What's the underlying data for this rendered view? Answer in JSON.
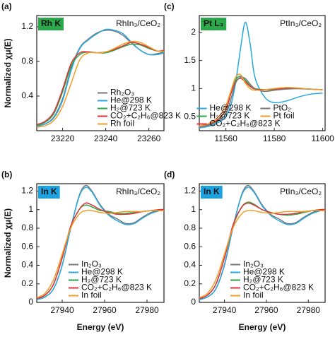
{
  "chart_data": [
    {
      "type": "line",
      "label": "(a)",
      "edge": "Rh K",
      "edge_color": "#2aa84a",
      "sample": "RhIn₃/CeO₂",
      "ylabel": "Normalized χμ(E)",
      "x": [
        23208,
        23212,
        23216,
        23220,
        23224,
        23228,
        23232,
        23236,
        23240,
        23244,
        23248,
        23252,
        23256,
        23260,
        23264,
        23267
      ],
      "xlim": [
        23208,
        23267
      ],
      "xticks": [
        23220,
        23240,
        23260
      ],
      "ylim": [
        0,
        1.33
      ],
      "yticks": [
        0.4,
        0.8,
        1.2
      ],
      "legend": "lower right",
      "legend_columns": 1,
      "series": [
        {
          "name": "Rh₂O₃",
          "color": "#777777",
          "values": [
            0.05,
            0.08,
            0.16,
            0.37,
            0.72,
            0.96,
            1.06,
            1.13,
            1.16,
            1.15,
            1.1,
            1.01,
            0.93,
            0.88,
            0.89,
            0.91
          ]
        },
        {
          "name": "He@298 K",
          "color": "#29a8e0",
          "values": [
            0.05,
            0.08,
            0.15,
            0.35,
            0.7,
            0.95,
            1.05,
            1.12,
            1.17,
            1.16,
            1.12,
            1.02,
            0.93,
            0.88,
            0.88,
            0.9
          ]
        },
        {
          "name": "H₂@723 K",
          "color": "#2aa84a",
          "values": [
            0.06,
            0.1,
            0.2,
            0.45,
            0.75,
            0.88,
            0.91,
            0.9,
            0.9,
            0.93,
            0.97,
            1.0,
            0.99,
            0.95,
            0.92,
            0.92
          ]
        },
        {
          "name": "CO₂+C₂H₆@823 K",
          "color": "#e0303a",
          "values": [
            0.07,
            0.11,
            0.22,
            0.48,
            0.78,
            0.9,
            0.91,
            0.9,
            0.91,
            0.94,
            0.98,
            1.02,
            1.0,
            0.96,
            0.92,
            0.93
          ]
        },
        {
          "name": "Rh foil",
          "color": "#f39c26",
          "values": [
            0.04,
            0.06,
            0.12,
            0.28,
            0.55,
            0.82,
            0.9,
            0.9,
            0.91,
            0.95,
            1.0,
            1.03,
            1.02,
            0.97,
            0.92,
            0.92
          ]
        }
      ]
    },
    {
      "type": "line",
      "label": "(b)",
      "edge": "In K",
      "edge_color": "#1aa3e0",
      "sample": "RhIn₃/CeO₂",
      "ylabel": "Normalized χμ(E)",
      "xlabel": "Energy (eV)",
      "x": [
        27928,
        27932,
        27936,
        27940,
        27944,
        27948,
        27951,
        27954,
        27958,
        27962,
        27966,
        27970,
        27974,
        27978,
        27982,
        27986,
        27988
      ],
      "xlim": [
        27928,
        27988
      ],
      "xticks": [
        27940,
        27960,
        27980
      ],
      "ylim": [
        0,
        1.28
      ],
      "yticks": [
        0.0,
        0.2,
        0.4,
        0.6,
        0.8,
        1.0,
        1.2
      ],
      "legend": "lower center",
      "legend_columns": 1,
      "series": [
        {
          "name": "In₂O₃",
          "color": "#777777",
          "values": [
            0.03,
            0.06,
            0.15,
            0.4,
            0.8,
            1.15,
            1.26,
            1.2,
            1.05,
            0.95,
            0.9,
            0.85,
            0.86,
            0.92,
            0.97,
            1.0,
            1.0
          ]
        },
        {
          "name": "He@298 K",
          "color": "#29a8e0",
          "values": [
            0.03,
            0.06,
            0.15,
            0.4,
            0.8,
            1.14,
            1.24,
            1.19,
            1.04,
            0.94,
            0.88,
            0.84,
            0.85,
            0.91,
            0.96,
            0.99,
            1.0
          ]
        },
        {
          "name": "H₂@723 K",
          "color": "#2aa84a",
          "values": [
            0.04,
            0.08,
            0.2,
            0.48,
            0.82,
            1.0,
            1.05,
            1.03,
            0.99,
            0.98,
            0.96,
            0.96,
            0.97,
            0.98,
            0.99,
            1.0,
            1.0
          ]
        },
        {
          "name": "CO₂+C₂H₆@823 K",
          "color": "#e0303a",
          "values": [
            0.04,
            0.08,
            0.2,
            0.48,
            0.82,
            1.0,
            1.07,
            1.05,
            1.0,
            0.97,
            0.95,
            0.95,
            0.96,
            0.98,
            0.99,
            1.0,
            1.0
          ]
        },
        {
          "name": "In foil",
          "color": "#f39c26",
          "values": [
            0.05,
            0.1,
            0.25,
            0.52,
            0.8,
            0.95,
            0.99,
            0.99,
            0.97,
            0.96,
            0.97,
            0.98,
            0.98,
            0.98,
            0.99,
            0.99,
            0.99
          ]
        }
      ]
    },
    {
      "type": "line",
      "label": "(c)",
      "edge": "Pt L₃",
      "edge_color": "#2aa84a",
      "sample": "PtIn₃/CeO₂",
      "x": [
        11549,
        11553,
        11557,
        11560,
        11562,
        11564,
        11566,
        11568,
        11570,
        11572,
        11576,
        11580,
        11585,
        11590,
        11595,
        11600
      ],
      "xlim": [
        11549,
        11601
      ],
      "xticks": [
        11560,
        11580,
        11600
      ],
      "ylim": [
        0.25,
        2.3
      ],
      "yticks": [
        0.5,
        1.0,
        1.5,
        2.0
      ],
      "legend": "lower center",
      "legend_columns": 2,
      "series": [
        {
          "name": "He@298 K",
          "color": "#29a8e0",
          "values": [
            0.3,
            0.33,
            0.4,
            0.5,
            0.7,
            1.1,
            1.7,
            2.18,
            1.8,
            1.2,
            0.85,
            0.75,
            0.78,
            0.85,
            0.9,
            0.92
          ]
        },
        {
          "name": "H₂@723 K",
          "color": "#2aa84a",
          "values": [
            0.32,
            0.36,
            0.45,
            0.62,
            0.9,
            1.15,
            1.22,
            1.15,
            1.05,
            1.0,
            0.98,
            0.98,
            1.0,
            1.0,
            0.99,
            0.98
          ]
        },
        {
          "name": "CO₂+C₂H₆@823 K",
          "color": "#e0303a",
          "values": [
            0.33,
            0.37,
            0.46,
            0.63,
            0.9,
            1.12,
            1.18,
            1.12,
            1.04,
            0.99,
            0.98,
            0.99,
            1.0,
            1.0,
            0.99,
            0.98
          ]
        },
        {
          "name": "PtO₂",
          "color": "#777777",
          "values": [
            0.32,
            0.35,
            0.43,
            0.55,
            0.8,
            1.1,
            1.2,
            1.18,
            1.08,
            1.0,
            0.95,
            0.97,
            0.99,
            1.0,
            0.99,
            0.98
          ]
        },
        {
          "name": "Pt foil",
          "color": "#f39c26",
          "values": [
            0.33,
            0.38,
            0.5,
            0.7,
            0.95,
            1.2,
            1.25,
            1.1,
            1.0,
            0.97,
            0.98,
            1.0,
            1.02,
            1.01,
            0.99,
            0.98
          ]
        }
      ]
    },
    {
      "type": "line",
      "label": "(d)",
      "edge": "In K",
      "edge_color": "#1aa3e0",
      "sample": "PtIn₃/CeO₂",
      "xlabel": "Energy (eV)",
      "x": [
        27928,
        27932,
        27936,
        27940,
        27944,
        27948,
        27951,
        27954,
        27958,
        27962,
        27966,
        27970,
        27974,
        27978,
        27982,
        27986,
        27988
      ],
      "xlim": [
        27928,
        27988
      ],
      "xticks": [
        27940,
        27960,
        27980
      ],
      "ylim": [
        0,
        1.28
      ],
      "yticks": [
        0.0,
        0.2,
        0.4,
        0.6,
        0.8,
        1.0,
        1.2
      ],
      "legend": "lower center",
      "legend_columns": 1,
      "series": [
        {
          "name": "In₂O₃",
          "color": "#777777",
          "values": [
            0.03,
            0.06,
            0.15,
            0.4,
            0.8,
            1.15,
            1.26,
            1.2,
            1.05,
            0.95,
            0.9,
            0.85,
            0.86,
            0.92,
            0.97,
            1.0,
            1.0
          ]
        },
        {
          "name": "He@298 K",
          "color": "#29a8e0",
          "values": [
            0.03,
            0.06,
            0.15,
            0.41,
            0.81,
            1.14,
            1.24,
            1.19,
            1.04,
            0.94,
            0.88,
            0.84,
            0.85,
            0.91,
            0.96,
            0.99,
            1.0
          ]
        },
        {
          "name": "H₂@723 K",
          "color": "#2aa84a",
          "values": [
            0.04,
            0.08,
            0.2,
            0.48,
            0.82,
            1.02,
            1.08,
            1.06,
            1.0,
            0.97,
            0.95,
            0.94,
            0.95,
            0.97,
            0.99,
            1.0,
            1.0
          ]
        },
        {
          "name": "CO₂+C₂H₆@823 K",
          "color": "#e0303a",
          "values": [
            0.04,
            0.08,
            0.2,
            0.48,
            0.83,
            1.02,
            1.07,
            1.05,
            1.0,
            0.97,
            0.95,
            0.95,
            0.96,
            0.98,
            0.99,
            1.0,
            1.0
          ]
        },
        {
          "name": "In foil",
          "color": "#f39c26",
          "values": [
            0.05,
            0.1,
            0.25,
            0.52,
            0.8,
            0.95,
            0.99,
            0.99,
            0.97,
            0.96,
            0.97,
            0.98,
            0.98,
            0.98,
            0.99,
            0.99,
            0.99
          ]
        }
      ]
    }
  ]
}
